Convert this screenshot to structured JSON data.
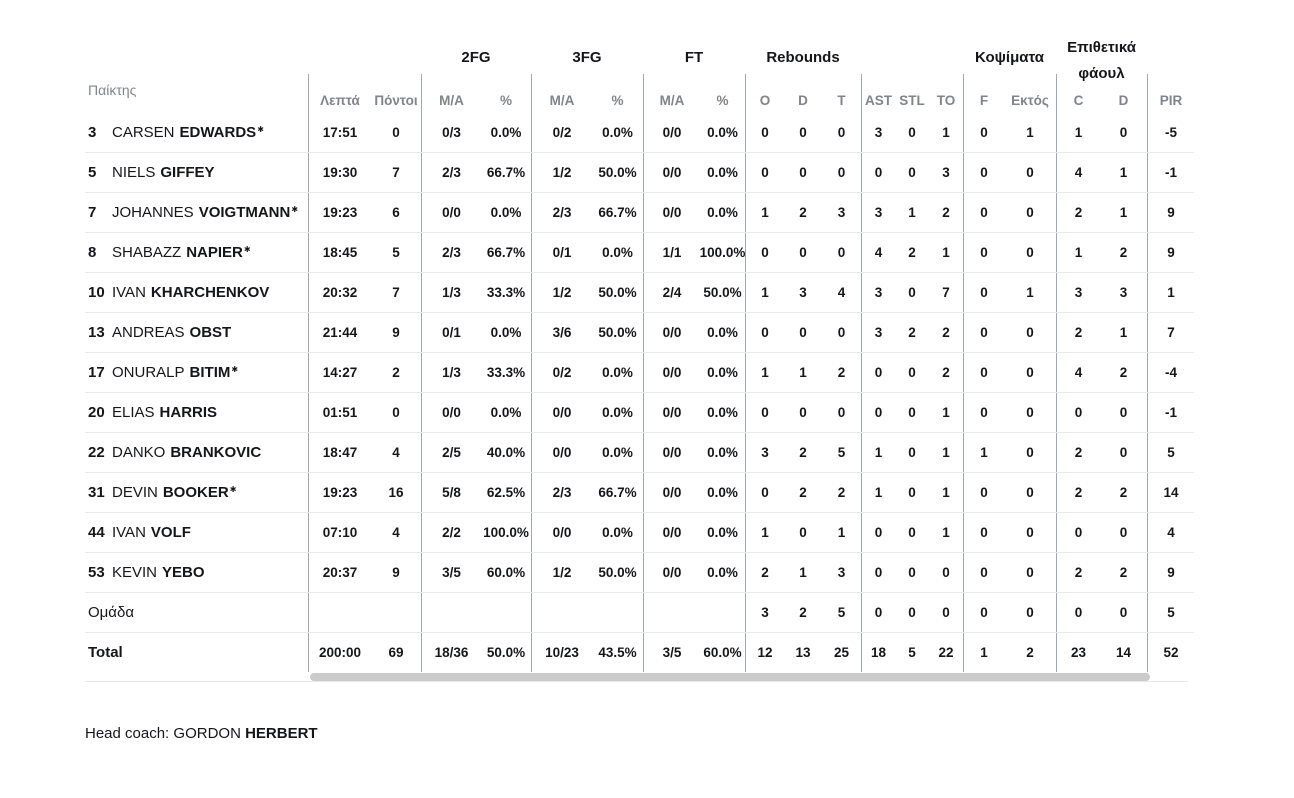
{
  "colors": {
    "text_dark": "#15161a",
    "text_gray": "#7f858b",
    "vertical_divider": "#a2a7ad",
    "row_divider": "#e9eaeb",
    "scrollbar_thumb": "#cbcbcb"
  },
  "starter_mark": "✱",
  "header": {
    "player": "Παίκτης",
    "groups": {
      "fg2": "2FG",
      "fg3": "3FG",
      "ft": "FT",
      "reb": "Rebounds",
      "blocks": "Κοψίματα",
      "fouls_line1": "Επιθετικά",
      "fouls_line2": "φάουλ"
    },
    "sub": {
      "min": "Λεπτά",
      "pts": "Πόντοι",
      "ma": "M/A",
      "pct": "%",
      "o": "O",
      "d": "D",
      "t": "T",
      "ast": "AST",
      "stl": "STL",
      "to": "TO",
      "f": "F",
      "against": "Εκτός",
      "c": "C",
      "d2": "D",
      "pir": "PIR"
    }
  },
  "rows": [
    {
      "num": "3",
      "first": "CARSEN",
      "last": "EDWARDS",
      "starter": true,
      "min": "17:51",
      "pts": "0",
      "fg2": "0/3",
      "fg2p": "0.0%",
      "fg3": "0/2",
      "fg3p": "0.0%",
      "ft": "0/0",
      "ftp": "0.0%",
      "ro": "0",
      "rd": "0",
      "rt": "0",
      "ast": "3",
      "stl": "0",
      "to": "1",
      "f": "0",
      "ag": "1",
      "fc": "1",
      "fd": "0",
      "pir": "-5"
    },
    {
      "num": "5",
      "first": "NIELS",
      "last": "GIFFEY",
      "starter": false,
      "min": "19:30",
      "pts": "7",
      "fg2": "2/3",
      "fg2p": "66.7%",
      "fg3": "1/2",
      "fg3p": "50.0%",
      "ft": "0/0",
      "ftp": "0.0%",
      "ro": "0",
      "rd": "0",
      "rt": "0",
      "ast": "0",
      "stl": "0",
      "to": "3",
      "f": "0",
      "ag": "0",
      "fc": "4",
      "fd": "1",
      "pir": "-1"
    },
    {
      "num": "7",
      "first": "JOHANNES",
      "last": "VOIGTMANN",
      "starter": true,
      "min": "19:23",
      "pts": "6",
      "fg2": "0/0",
      "fg2p": "0.0%",
      "fg3": "2/3",
      "fg3p": "66.7%",
      "ft": "0/0",
      "ftp": "0.0%",
      "ro": "1",
      "rd": "2",
      "rt": "3",
      "ast": "3",
      "stl": "1",
      "to": "2",
      "f": "0",
      "ag": "0",
      "fc": "2",
      "fd": "1",
      "pir": "9"
    },
    {
      "num": "8",
      "first": "SHABAZZ",
      "last": "NAPIER",
      "starter": true,
      "min": "18:45",
      "pts": "5",
      "fg2": "2/3",
      "fg2p": "66.7%",
      "fg3": "0/1",
      "fg3p": "0.0%",
      "ft": "1/1",
      "ftp": "100.0%",
      "ro": "0",
      "rd": "0",
      "rt": "0",
      "ast": "4",
      "stl": "2",
      "to": "1",
      "f": "0",
      "ag": "0",
      "fc": "1",
      "fd": "2",
      "pir": "9"
    },
    {
      "num": "10",
      "first": "IVAN",
      "last": "KHARCHENKOV",
      "starter": false,
      "min": "20:32",
      "pts": "7",
      "fg2": "1/3",
      "fg2p": "33.3%",
      "fg3": "1/2",
      "fg3p": "50.0%",
      "ft": "2/4",
      "ftp": "50.0%",
      "ro": "1",
      "rd": "3",
      "rt": "4",
      "ast": "3",
      "stl": "0",
      "to": "7",
      "f": "0",
      "ag": "1",
      "fc": "3",
      "fd": "3",
      "pir": "1"
    },
    {
      "num": "13",
      "first": "ANDREAS",
      "last": "OBST",
      "starter": false,
      "min": "21:44",
      "pts": "9",
      "fg2": "0/1",
      "fg2p": "0.0%",
      "fg3": "3/6",
      "fg3p": "50.0%",
      "ft": "0/0",
      "ftp": "0.0%",
      "ro": "0",
      "rd": "0",
      "rt": "0",
      "ast": "3",
      "stl": "2",
      "to": "2",
      "f": "0",
      "ag": "0",
      "fc": "2",
      "fd": "1",
      "pir": "7"
    },
    {
      "num": "17",
      "first": "ONURALP",
      "last": "BITIM",
      "starter": true,
      "min": "14:27",
      "pts": "2",
      "fg2": "1/3",
      "fg2p": "33.3%",
      "fg3": "0/2",
      "fg3p": "0.0%",
      "ft": "0/0",
      "ftp": "0.0%",
      "ro": "1",
      "rd": "1",
      "rt": "2",
      "ast": "0",
      "stl": "0",
      "to": "2",
      "f": "0",
      "ag": "0",
      "fc": "4",
      "fd": "2",
      "pir": "-4"
    },
    {
      "num": "20",
      "first": "ELIAS",
      "last": "HARRIS",
      "starter": false,
      "min": "01:51",
      "pts": "0",
      "fg2": "0/0",
      "fg2p": "0.0%",
      "fg3": "0/0",
      "fg3p": "0.0%",
      "ft": "0/0",
      "ftp": "0.0%",
      "ro": "0",
      "rd": "0",
      "rt": "0",
      "ast": "0",
      "stl": "0",
      "to": "1",
      "f": "0",
      "ag": "0",
      "fc": "0",
      "fd": "0",
      "pir": "-1"
    },
    {
      "num": "22",
      "first": "DANKO",
      "last": "BRANKOVIC",
      "starter": false,
      "min": "18:47",
      "pts": "4",
      "fg2": "2/5",
      "fg2p": "40.0%",
      "fg3": "0/0",
      "fg3p": "0.0%",
      "ft": "0/0",
      "ftp": "0.0%",
      "ro": "3",
      "rd": "2",
      "rt": "5",
      "ast": "1",
      "stl": "0",
      "to": "1",
      "f": "1",
      "ag": "0",
      "fc": "2",
      "fd": "0",
      "pir": "5"
    },
    {
      "num": "31",
      "first": "DEVIN",
      "last": "BOOKER",
      "starter": true,
      "min": "19:23",
      "pts": "16",
      "fg2": "5/8",
      "fg2p": "62.5%",
      "fg3": "2/3",
      "fg3p": "66.7%",
      "ft": "0/0",
      "ftp": "0.0%",
      "ro": "0",
      "rd": "2",
      "rt": "2",
      "ast": "1",
      "stl": "0",
      "to": "1",
      "f": "0",
      "ag": "0",
      "fc": "2",
      "fd": "2",
      "pir": "14"
    },
    {
      "num": "44",
      "first": "IVAN",
      "last": "VOLF",
      "starter": false,
      "min": "07:10",
      "pts": "4",
      "fg2": "2/2",
      "fg2p": "100.0%",
      "fg3": "0/0",
      "fg3p": "0.0%",
      "ft": "0/0",
      "ftp": "0.0%",
      "ro": "1",
      "rd": "0",
      "rt": "1",
      "ast": "0",
      "stl": "0",
      "to": "1",
      "f": "0",
      "ag": "0",
      "fc": "0",
      "fd": "0",
      "pir": "4"
    },
    {
      "num": "53",
      "first": "KEVIN",
      "last": "YEBO",
      "starter": false,
      "min": "20:37",
      "pts": "9",
      "fg2": "3/5",
      "fg2p": "60.0%",
      "fg3": "1/2",
      "fg3p": "50.0%",
      "ft": "0/0",
      "ftp": "0.0%",
      "ro": "2",
      "rd": "1",
      "rt": "3",
      "ast": "0",
      "stl": "0",
      "to": "0",
      "f": "0",
      "ag": "0",
      "fc": "2",
      "fd": "2",
      "pir": "9"
    }
  ],
  "team_row": {
    "label": "Ομάδα",
    "ro": "3",
    "rd": "2",
    "rt": "5",
    "ast": "0",
    "stl": "0",
    "to": "0",
    "f": "0",
    "ag": "0",
    "fc": "0",
    "fd": "0",
    "pir": "5"
  },
  "total_row": {
    "label": "Total",
    "min": "200:00",
    "pts": "69",
    "fg2": "18/36",
    "fg2p": "50.0%",
    "fg3": "10/23",
    "fg3p": "43.5%",
    "ft": "3/5",
    "ftp": "60.0%",
    "ro": "12",
    "rd": "13",
    "rt": "25",
    "ast": "18",
    "stl": "5",
    "to": "22",
    "f": "1",
    "ag": "2",
    "fc": "23",
    "fd": "14",
    "pir": "52"
  },
  "footer": {
    "label": "Head coach:",
    "coach_first": "GORDON",
    "coach_last": "HERBERT"
  }
}
